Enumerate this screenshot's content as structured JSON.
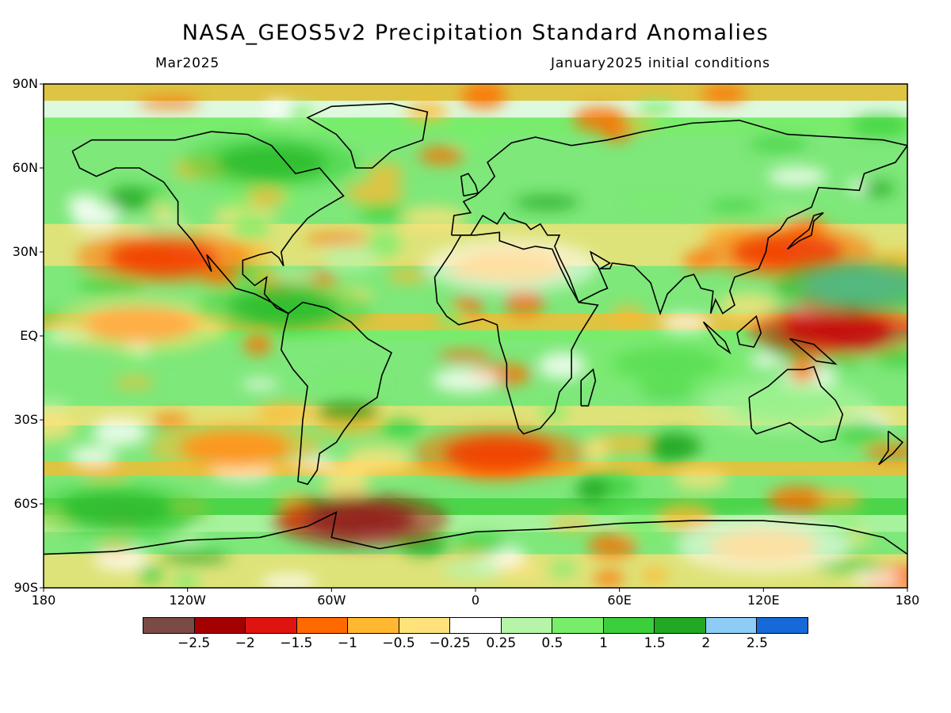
{
  "title": "NASA_GEOS5v2 Precipitation Standard Anomalies",
  "subtitle_left": "Mar2025",
  "subtitle_right": "January2025 initial conditions",
  "lat_labels": [
    "90N",
    "60N",
    "30N",
    "EQ",
    "30S",
    "60S",
    "90S"
  ],
  "lon_labels": [
    "180",
    "120W",
    "60W",
    "0",
    "60E",
    "120E",
    "180"
  ],
  "colorbar": {
    "colors": [
      "#7b4a45",
      "#a50000",
      "#e0140f",
      "#ff6a00",
      "#ffb830",
      "#ffe27a",
      "#ffffff",
      "#b6f5a8",
      "#78ed6a",
      "#3ccf3c",
      "#22a822",
      "#8ecbf5",
      "#1669d6"
    ],
    "labels": [
      "−2.5",
      "−2",
      "−1.5",
      "−1",
      "−0.5",
      "−0.25",
      "0.25",
      "0.5",
      "1",
      "1.5",
      "2",
      "2.5"
    ]
  },
  "map_regions": {
    "anomalies": [
      {
        "name": "equatorial-east-pacific-dry",
        "lon": -140,
        "lat": 4,
        "value": -1.0
      },
      {
        "name": "northeast-pacific-dry",
        "lon": -130,
        "lat": 28,
        "value": -1.6
      },
      {
        "name": "west-pacific-dry",
        "lon": 150,
        "lat": 2,
        "value": -2.2
      },
      {
        "name": "south-atlantic-dry",
        "lon": 10,
        "lat": -42,
        "value": -1.6
      },
      {
        "name": "drake-passage-dry",
        "lon": -48,
        "lat": -66,
        "value": -2.6
      },
      {
        "name": "south-pacific-dry",
        "lon": -100,
        "lat": -40,
        "value": -1.3
      },
      {
        "name": "sahara-dry",
        "lon": 15,
        "lat": 25,
        "value": -0.5
      },
      {
        "name": "east-asia-dry",
        "lon": 130,
        "lat": 30,
        "value": -1.6
      },
      {
        "name": "north-pacific-wet",
        "lon": 160,
        "lat": 18,
        "value": 2.2
      },
      {
        "name": "caribbean-wet",
        "lon": -80,
        "lat": 10,
        "value": 2.0
      },
      {
        "name": "hudson-bay-wet",
        "lon": -85,
        "lat": 62,
        "value": 1.8
      },
      {
        "name": "southern-ocean-wet",
        "lon": -150,
        "lat": -62,
        "value": 1.8
      },
      {
        "name": "indian-ocean-wet",
        "lon": 80,
        "lat": -10,
        "value": 1.4
      },
      {
        "name": "australia-wet",
        "lon": 130,
        "lat": -25,
        "value": 1.0
      },
      {
        "name": "antarctica-dry",
        "lon": 120,
        "lat": -75,
        "value": -0.6
      }
    ]
  }
}
